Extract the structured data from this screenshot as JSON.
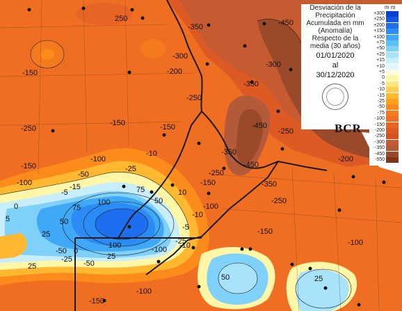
{
  "info": {
    "title_lines": [
      "Desviación de la",
      "Precipitación",
      "Acumulada en mm",
      "(Anomalía)",
      "Respecto de la",
      "media (30 años)"
    ],
    "date_from": "01/01/2020",
    "date_sep": "al",
    "date_to": "30/12/2020",
    "logo": "BCR"
  },
  "legend": {
    "unit": "m m",
    "items": [
      {
        "value": "+300",
        "color": "#0a3fd6"
      },
      {
        "value": "+250",
        "color": "#1456e6"
      },
      {
        "value": "+200",
        "color": "#1e6ff0"
      },
      {
        "value": "+150",
        "color": "#2b8cf5"
      },
      {
        "value": "+100",
        "color": "#3fa8f7"
      },
      {
        "value": "+75",
        "color": "#5ebef8"
      },
      {
        "value": "+50",
        "color": "#7fd1f9"
      },
      {
        "value": "+25",
        "color": "#a8e2fb"
      },
      {
        "value": "+15",
        "color": "#c8eefc"
      },
      {
        "value": "+10",
        "color": "#e2f7fd"
      },
      {
        "value": "+5",
        "color": "#fffde0"
      },
      {
        "value": "0",
        "color": "#fff7a8"
      },
      {
        "value": "-5",
        "color": "#ffe57a"
      },
      {
        "value": "-10",
        "color": "#ffd050"
      },
      {
        "value": "-15",
        "color": "#ffb830"
      },
      {
        "value": "-25",
        "color": "#ffa020"
      },
      {
        "value": "-50",
        "color": "#fb8c1c"
      },
      {
        "value": "-75",
        "color": "#f57a1e"
      },
      {
        "value": "-100",
        "color": "#ef6e22"
      },
      {
        "value": "-150",
        "color": "#e86424"
      },
      {
        "value": "-200",
        "color": "#de5a24"
      },
      {
        "value": "-250",
        "color": "#d45422"
      },
      {
        "value": "-300",
        "color": "#c65a30"
      },
      {
        "value": "-350",
        "color": "#b25a3a"
      },
      {
        "value": "-450",
        "color": "#9a4a2a"
      },
      {
        "value": "-550",
        "color": "#7e3418"
      }
    ]
  },
  "contour_labels": [
    "250",
    "-150",
    "-250",
    "-250",
    "-150",
    "-100",
    "-150",
    "-100",
    "-50",
    "-25",
    "-10",
    "-15",
    "-5",
    "0",
    "5",
    "10",
    "25",
    "50",
    "75",
    "100",
    "75",
    "50",
    "25",
    "-10",
    "-5",
    "-25",
    "-350",
    "-450",
    "-350",
    "-450",
    "-300",
    "-250",
    "-350",
    "-300",
    "-450",
    "-250",
    "-200",
    "-150",
    "-100",
    "-250",
    "-150",
    "-100",
    "-50",
    "-25",
    "-10",
    "25",
    "50",
    "25",
    "-100",
    "-150",
    "-100",
    "-50",
    "0",
    "100",
    "-150",
    "-200",
    "-350"
  ],
  "colors": {
    "background": "#ef6e22",
    "ocean": "#ffffff",
    "border": "#1a1a1a",
    "station": "#111111"
  }
}
